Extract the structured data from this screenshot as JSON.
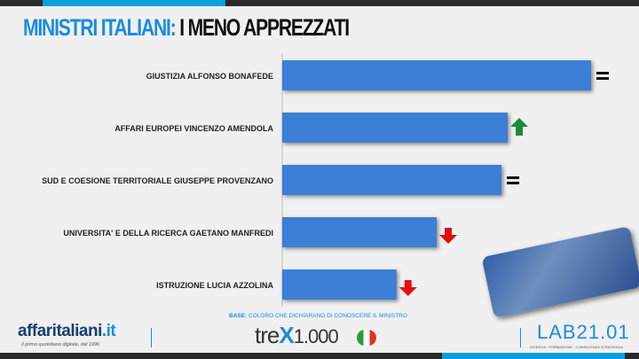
{
  "header": {
    "title_accent": "MINISTRI ITALIANI:",
    "title_rest": "I MENO APPREZZATI"
  },
  "chart_data": {
    "type": "bar",
    "orientation": "horizontal",
    "title": "MINISTRI ITALIANI: I MENO APPREZZATI",
    "categories": [
      "GIUSTIZIA ALFONSO BONAFEDE",
      "AFFARI EUROPEI VINCENZO AMENDOLA",
      "SUD E COESIONE TERRITORIALE GIUSEPPE  PROVENZANO",
      "UNIVERSITA' E DELLA RICERCA GAETANO MANFREDI",
      "ISTRUZIONE LUCIA AZZOLINA"
    ],
    "values": [
      100,
      73,
      71,
      50,
      37
    ],
    "trends": [
      "equal",
      "up",
      "equal",
      "down",
      "down"
    ],
    "bar_color": "#3b7fd6",
    "trend_colors": {
      "up": "#1e8a3a",
      "down": "#e01010",
      "equal": "#111111"
    },
    "grid": false,
    "axis_labels_shown": false
  },
  "footer": {
    "base_label": "BASE:",
    "base_text": "COLORO CHE DICHIARANO DI CONOSCERE IL MINISTRO",
    "affaritaliani": "affaritaliani",
    "affaritaliani_tld": ".it",
    "affaritaliani_sub": "Il primo quotidiano digitale, dal 1996",
    "trex_a": "tre",
    "trex_x": "X",
    "trex_b": "1.000",
    "lab": "LAB21.01",
    "lab_sub": "RICERCA · FORMAZIONE · CONSULENZA STRATEGICA"
  }
}
